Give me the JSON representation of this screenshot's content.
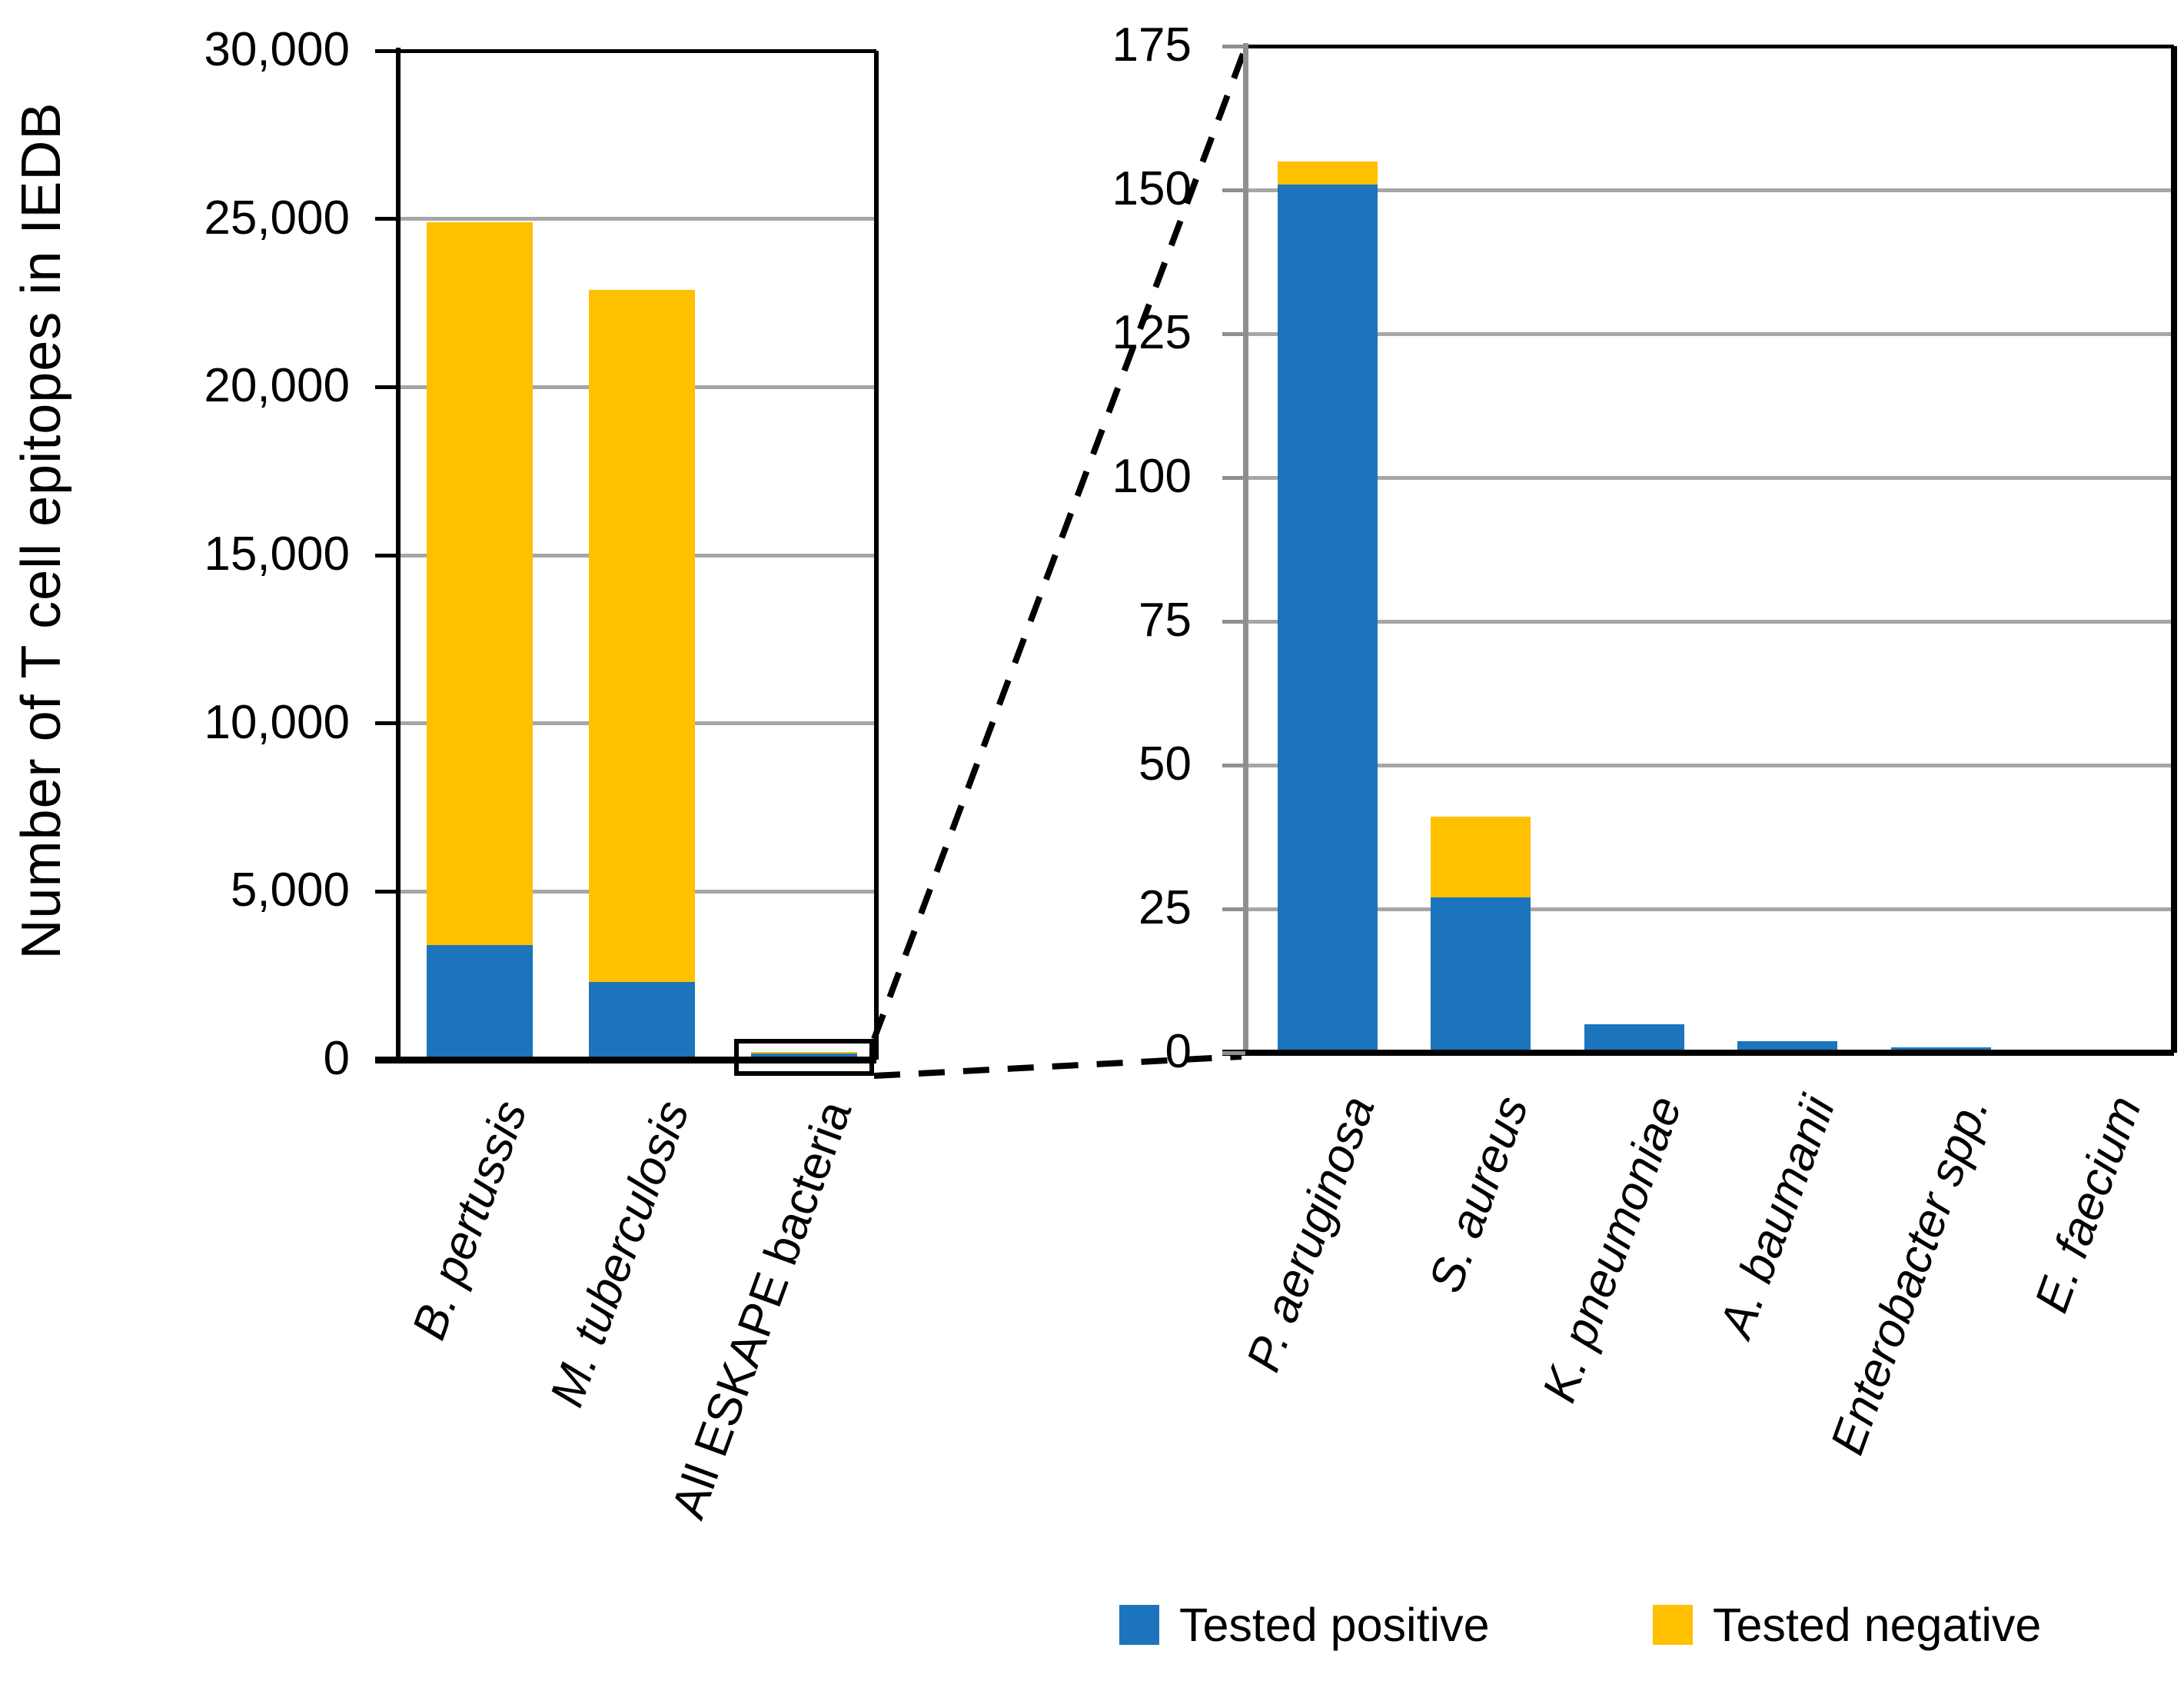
{
  "y_axis_title": "Number of T cell epitopes in IEDB",
  "legend": {
    "items": [
      {
        "label": "Tested positive",
        "color": "#1B74BC"
      },
      {
        "label": "Tested negative",
        "color": "#FFC000"
      }
    ]
  },
  "colors": {
    "positive_blue": "#1B74BC",
    "negative_yellow": "#FFC000",
    "gridline_gray": "#A6A6A6",
    "axis_black": "#000000"
  },
  "chart_data": [
    {
      "id": "overview-bacteria",
      "type": "bar",
      "stacked": true,
      "title": "",
      "ylabel": "Number of T cell epitopes in IEDB",
      "xlabel": "",
      "ylim": [
        0,
        30000
      ],
      "ytick_interval": 5000,
      "ytick_labels": [
        "0",
        "5,000",
        "10,000",
        "15,000",
        "20,000",
        "25,000",
        "30,000"
      ],
      "grid": true,
      "legend_position": "bottom",
      "categories": [
        "B. pertussis",
        "M. tuberculosis",
        "All ESKAPE bacteria"
      ],
      "categories_italic": [
        true,
        true,
        false
      ],
      "series": [
        {
          "name": "Tested positive",
          "color": "#1B74BC",
          "values": [
            3400,
            2300,
            186
          ]
        },
        {
          "name": "Tested negative",
          "color": "#FFC000",
          "values": [
            21500,
            20600,
            18
          ]
        }
      ],
      "totals_approx": [
        24900,
        22900,
        204
      ],
      "annotation": "black zoom-callout rectangle around the All ESKAPE bacteria bar, linked by two dashed lines to the detail chart"
    },
    {
      "id": "eskape-detail",
      "type": "bar",
      "stacked": true,
      "title": "",
      "ylabel": "",
      "xlabel": "",
      "ylim": [
        0,
        175
      ],
      "ytick_interval": 25,
      "ytick_labels": [
        "0",
        "25",
        "50",
        "75",
        "100",
        "125",
        "150",
        "175"
      ],
      "grid": true,
      "legend_position": "bottom",
      "categories": [
        "P. aeruginosa",
        "S. aureus",
        "K. pneumoniae",
        "A. baumanii",
        "Enterobacter spp.",
        "E. faecium"
      ],
      "categories_italic": [
        true,
        true,
        true,
        true,
        true,
        true
      ],
      "series": [
        {
          "name": "Tested positive",
          "color": "#1B74BC",
          "values": [
            151,
            27,
            5,
            2,
            1,
            0
          ]
        },
        {
          "name": "Tested negative",
          "color": "#FFC000",
          "values": [
            4,
            14,
            0,
            0,
            0,
            0
          ]
        }
      ],
      "totals_approx": [
        155,
        41,
        5,
        2,
        1,
        0
      ]
    }
  ]
}
